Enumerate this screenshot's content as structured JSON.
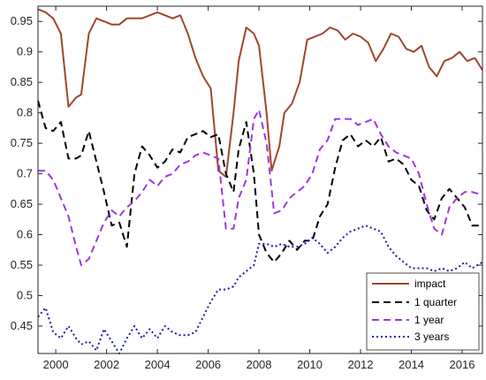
{
  "chart_data": {
    "type": "line",
    "title": "",
    "xlabel": "",
    "ylabel": "",
    "xlim": [
      1999.3,
      2016.8
    ],
    "ylim": [
      0.405,
      0.975
    ],
    "grid": false,
    "legend_position": "bottom-right",
    "x_ticks": [
      2000,
      2002,
      2004,
      2006,
      2008,
      2010,
      2012,
      2014,
      2016
    ],
    "x_tick_labels": [
      "2000",
      "2002",
      "2004",
      "2006",
      "2008",
      "2010",
      "2012",
      "2014",
      "2016"
    ],
    "y_ticks": [
      0.45,
      0.5,
      0.55,
      0.6,
      0.65,
      0.7,
      0.75,
      0.8,
      0.85,
      0.9,
      0.95
    ],
    "y_tick_labels": [
      "0.45",
      "0.5",
      "0.55",
      "0.6",
      "0.65",
      "0.7",
      "0.75",
      "0.8",
      "0.85",
      "0.9",
      "0.95"
    ],
    "series": [
      {
        "name": "impact",
        "color": "#A0462D",
        "style": "solid",
        "x": [
          1999.3,
          1999.6,
          1999.9,
          2000.2,
          2000.5,
          2000.8,
          2001.0,
          2001.3,
          2001.6,
          2001.9,
          2002.2,
          2002.5,
          2002.8,
          2003.1,
          2003.4,
          2003.7,
          2004.0,
          2004.3,
          2004.6,
          2004.9,
          2005.2,
          2005.5,
          2005.8,
          2006.1,
          2006.4,
          2006.7,
          2007.0,
          2007.2,
          2007.5,
          2007.8,
          2008.0,
          2008.3,
          2008.5,
          2008.8,
          2009.0,
          2009.3,
          2009.6,
          2009.9,
          2010.2,
          2010.5,
          2010.8,
          2011.1,
          2011.4,
          2011.7,
          2012.0,
          2012.3,
          2012.6,
          2012.9,
          2013.2,
          2013.5,
          2013.8,
          2014.1,
          2014.4,
          2014.7,
          2015.0,
          2015.3,
          2015.6,
          2015.9,
          2016.2,
          2016.5,
          2016.8
        ],
        "y": [
          0.97,
          0.965,
          0.955,
          0.93,
          0.81,
          0.825,
          0.83,
          0.93,
          0.955,
          0.95,
          0.945,
          0.945,
          0.955,
          0.955,
          0.955,
          0.96,
          0.965,
          0.96,
          0.955,
          0.96,
          0.93,
          0.89,
          0.86,
          0.84,
          0.705,
          0.695,
          0.8,
          0.885,
          0.94,
          0.93,
          0.91,
          0.8,
          0.705,
          0.745,
          0.8,
          0.815,
          0.85,
          0.92,
          0.925,
          0.93,
          0.94,
          0.935,
          0.92,
          0.93,
          0.925,
          0.915,
          0.885,
          0.905,
          0.93,
          0.925,
          0.905,
          0.9,
          0.91,
          0.875,
          0.86,
          0.885,
          0.89,
          0.9,
          0.885,
          0.89,
          0.87
        ]
      },
      {
        "name": "1 quarter",
        "color": "#000000",
        "style": "dashed",
        "x": [
          1999.3,
          1999.6,
          1999.9,
          2000.2,
          2000.5,
          2000.8,
          2001.0,
          2001.3,
          2001.6,
          2001.9,
          2002.2,
          2002.5,
          2002.8,
          2003.1,
          2003.4,
          2003.7,
          2004.0,
          2004.3,
          2004.6,
          2004.9,
          2005.2,
          2005.5,
          2005.8,
          2006.1,
          2006.4,
          2006.7,
          2007.0,
          2007.2,
          2007.5,
          2007.8,
          2008.0,
          2008.3,
          2008.6,
          2008.9,
          2009.2,
          2009.5,
          2009.8,
          2010.1,
          2010.4,
          2010.7,
          2011.0,
          2011.3,
          2011.6,
          2011.9,
          2012.2,
          2012.5,
          2012.8,
          2013.1,
          2013.4,
          2013.7,
          2014.0,
          2014.3,
          2014.6,
          2014.9,
          2015.2,
          2015.5,
          2015.8,
          2016.1,
          2016.4,
          2016.8
        ],
        "y": [
          0.82,
          0.775,
          0.77,
          0.785,
          0.725,
          0.725,
          0.73,
          0.77,
          0.72,
          0.67,
          0.615,
          0.62,
          0.58,
          0.7,
          0.745,
          0.73,
          0.71,
          0.72,
          0.74,
          0.735,
          0.76,
          0.765,
          0.77,
          0.76,
          0.765,
          0.7,
          0.67,
          0.74,
          0.785,
          0.7,
          0.6,
          0.57,
          0.555,
          0.57,
          0.59,
          0.575,
          0.59,
          0.59,
          0.63,
          0.65,
          0.71,
          0.755,
          0.765,
          0.745,
          0.755,
          0.745,
          0.76,
          0.72,
          0.725,
          0.715,
          0.69,
          0.68,
          0.64,
          0.625,
          0.66,
          0.675,
          0.66,
          0.645,
          0.615,
          0.615
        ]
      },
      {
        "name": "1 year",
        "color": "#A035E0",
        "style": "dashed",
        "x": [
          1999.3,
          1999.6,
          1999.9,
          2000.2,
          2000.5,
          2000.8,
          2001.0,
          2001.3,
          2001.6,
          2001.9,
          2002.2,
          2002.5,
          2002.8,
          2003.1,
          2003.4,
          2003.7,
          2004.0,
          2004.3,
          2004.6,
          2004.9,
          2005.2,
          2005.5,
          2005.8,
          2006.1,
          2006.4,
          2006.7,
          2007.0,
          2007.2,
          2007.5,
          2007.8,
          2008.0,
          2008.3,
          2008.6,
          2008.9,
          2009.2,
          2009.5,
          2009.8,
          2010.1,
          2010.4,
          2010.7,
          2011.0,
          2011.3,
          2011.6,
          2011.9,
          2012.2,
          2012.5,
          2012.8,
          2013.1,
          2013.4,
          2013.7,
          2014.0,
          2014.3,
          2014.6,
          2014.9,
          2015.2,
          2015.5,
          2015.8,
          2016.1,
          2016.4,
          2016.8
        ],
        "y": [
          0.705,
          0.705,
          0.69,
          0.66,
          0.63,
          0.58,
          0.55,
          0.56,
          0.59,
          0.62,
          0.64,
          0.63,
          0.645,
          0.655,
          0.67,
          0.69,
          0.68,
          0.695,
          0.7,
          0.715,
          0.72,
          0.73,
          0.735,
          0.73,
          0.725,
          0.61,
          0.61,
          0.66,
          0.69,
          0.79,
          0.805,
          0.75,
          0.635,
          0.64,
          0.66,
          0.67,
          0.68,
          0.7,
          0.74,
          0.755,
          0.79,
          0.79,
          0.79,
          0.78,
          0.785,
          0.79,
          0.765,
          0.745,
          0.735,
          0.73,
          0.725,
          0.7,
          0.65,
          0.61,
          0.6,
          0.645,
          0.66,
          0.67,
          0.67,
          0.665
        ]
      },
      {
        "name": "3 years",
        "color": "#1A1AAF",
        "style": "dotted",
        "x": [
          1999.3,
          1999.6,
          1999.9,
          2000.2,
          2000.5,
          2000.8,
          2001.0,
          2001.3,
          2001.6,
          2001.9,
          2002.2,
          2002.5,
          2002.8,
          2003.1,
          2003.4,
          2003.7,
          2004.0,
          2004.3,
          2004.6,
          2004.9,
          2005.2,
          2005.5,
          2005.8,
          2006.1,
          2006.4,
          2006.7,
          2007.0,
          2007.2,
          2007.5,
          2007.8,
          2008.0,
          2008.3,
          2008.6,
          2008.9,
          2009.2,
          2009.5,
          2009.8,
          2010.1,
          2010.4,
          2010.7,
          2011.0,
          2011.3,
          2011.6,
          2011.9,
          2012.2,
          2012.5,
          2012.8,
          2013.1,
          2013.4,
          2013.7,
          2014.0,
          2014.3,
          2014.6,
          2014.9,
          2015.2,
          2015.5,
          2015.8,
          2016.1,
          2016.4,
          2016.8
        ],
        "y": [
          0.465,
          0.48,
          0.44,
          0.43,
          0.45,
          0.43,
          0.42,
          0.425,
          0.41,
          0.445,
          0.425,
          0.405,
          0.43,
          0.45,
          0.43,
          0.445,
          0.43,
          0.45,
          0.44,
          0.435,
          0.435,
          0.44,
          0.465,
          0.49,
          0.51,
          0.51,
          0.515,
          0.53,
          0.54,
          0.55,
          0.585,
          0.585,
          0.58,
          0.585,
          0.58,
          0.58,
          0.585,
          0.595,
          0.585,
          0.57,
          0.58,
          0.595,
          0.605,
          0.61,
          0.615,
          0.61,
          0.605,
          0.58,
          0.565,
          0.555,
          0.545,
          0.545,
          0.545,
          0.54,
          0.545,
          0.54,
          0.545,
          0.555,
          0.545,
          0.555
        ]
      }
    ]
  }
}
